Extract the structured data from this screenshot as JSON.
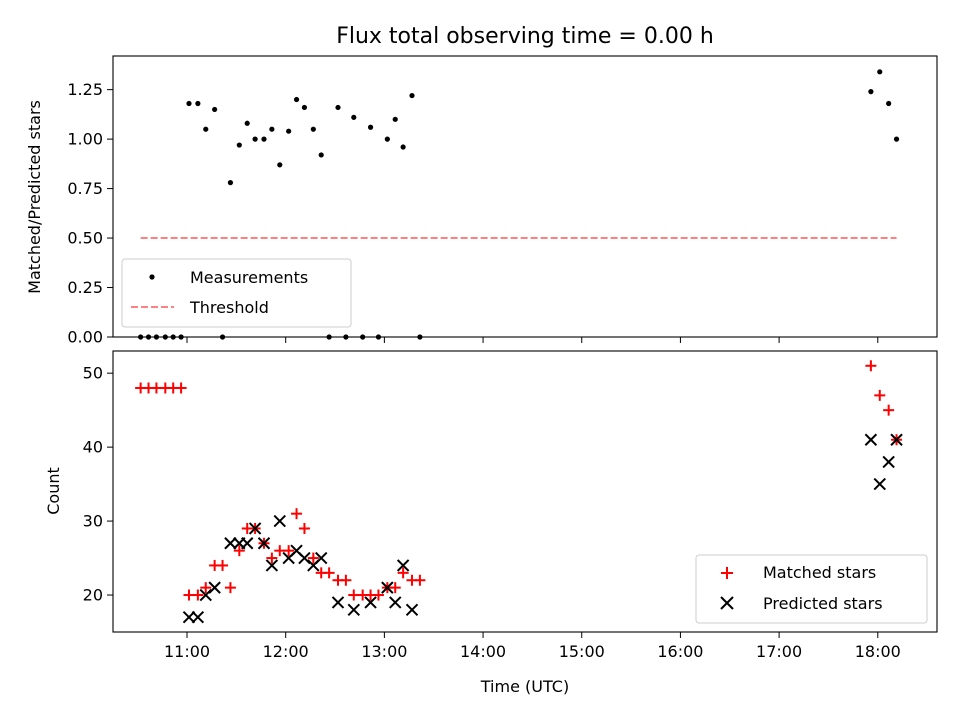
{
  "chart_data": [
    {
      "type": "scatter",
      "title": "Flux total observing time = 0.00 h",
      "xlabel": "",
      "ylabel": "Matched/Predicted stars",
      "xlim": [
        10.25,
        18.6
      ],
      "ylim": [
        0,
        1.42
      ],
      "yticks": [
        0.0,
        0.25,
        0.5,
        0.75,
        1.0,
        1.25
      ],
      "ytick_labels": [
        "0.00",
        "0.25",
        "0.50",
        "0.75",
        "1.00",
        "1.25"
      ],
      "legend_position": "lower-left",
      "series": [
        {
          "name": "Measurements",
          "kind": "dot",
          "color": "#000000",
          "points": [
            [
              10.53,
              0
            ],
            [
              10.61,
              0
            ],
            [
              10.69,
              0
            ],
            [
              10.78,
              0
            ],
            [
              10.86,
              0
            ],
            [
              10.94,
              0
            ],
            [
              11.02,
              1.18
            ],
            [
              11.11,
              1.18
            ],
            [
              11.19,
              1.05
            ],
            [
              11.28,
              1.15
            ],
            [
              11.36,
              0
            ],
            [
              11.44,
              0.78
            ],
            [
              11.53,
              0.97
            ],
            [
              11.61,
              1.08
            ],
            [
              11.69,
              1.0
            ],
            [
              11.78,
              1.0
            ],
            [
              11.86,
              1.05
            ],
            [
              11.94,
              0.87
            ],
            [
              12.03,
              1.04
            ],
            [
              12.11,
              1.2
            ],
            [
              12.19,
              1.16
            ],
            [
              12.28,
              1.05
            ],
            [
              12.36,
              0.92
            ],
            [
              12.44,
              0
            ],
            [
              12.53,
              1.16
            ],
            [
              12.61,
              0
            ],
            [
              12.69,
              1.11
            ],
            [
              12.78,
              0
            ],
            [
              12.86,
              1.06
            ],
            [
              12.94,
              0
            ],
            [
              13.03,
              1.0
            ],
            [
              13.11,
              1.1
            ],
            [
              13.19,
              0.96
            ],
            [
              13.28,
              1.22
            ],
            [
              13.36,
              0
            ],
            [
              17.93,
              1.24
            ],
            [
              18.02,
              1.34
            ],
            [
              18.11,
              1.18
            ],
            [
              18.19,
              1.0
            ]
          ]
        },
        {
          "name": "Threshold",
          "kind": "dashed-line",
          "color": "#ff8080",
          "points": [
            [
              10.53,
              0.5
            ],
            [
              18.19,
              0.5
            ]
          ]
        }
      ]
    },
    {
      "type": "scatter",
      "title": "",
      "xlabel": "Time (UTC)",
      "ylabel": "Count",
      "xlim": [
        10.25,
        18.6
      ],
      "ylim": [
        15,
        53
      ],
      "yticks": [
        20,
        30,
        40,
        50
      ],
      "ytick_labels": [
        "20",
        "30",
        "40",
        "50"
      ],
      "xticks": [
        11,
        12,
        13,
        14,
        15,
        16,
        17,
        18
      ],
      "xtick_labels": [
        "11:00",
        "12:00",
        "13:00",
        "14:00",
        "15:00",
        "16:00",
        "17:00",
        "18:00"
      ],
      "legend_position": "lower-right",
      "series": [
        {
          "name": "Matched stars",
          "kind": "plus",
          "color": "#ff0000",
          "points": [
            [
              10.53,
              48
            ],
            [
              10.61,
              48
            ],
            [
              10.69,
              48
            ],
            [
              10.78,
              48
            ],
            [
              10.86,
              48
            ],
            [
              10.94,
              48
            ],
            [
              11.02,
              20
            ],
            [
              11.11,
              20
            ],
            [
              11.19,
              21
            ],
            [
              11.28,
              24
            ],
            [
              11.36,
              24
            ],
            [
              11.44,
              21
            ],
            [
              11.53,
              26
            ],
            [
              11.61,
              29
            ],
            [
              11.69,
              29
            ],
            [
              11.78,
              27
            ],
            [
              11.86,
              25
            ],
            [
              11.94,
              26
            ],
            [
              12.03,
              26
            ],
            [
              12.11,
              31
            ],
            [
              12.19,
              29
            ],
            [
              12.28,
              25
            ],
            [
              12.36,
              23
            ],
            [
              12.44,
              23
            ],
            [
              12.53,
              22
            ],
            [
              12.61,
              22
            ],
            [
              12.69,
              20
            ],
            [
              12.78,
              20
            ],
            [
              12.86,
              20
            ],
            [
              12.94,
              20
            ],
            [
              13.03,
              21
            ],
            [
              13.11,
              21
            ],
            [
              13.19,
              23
            ],
            [
              13.28,
              22
            ],
            [
              13.36,
              22
            ],
            [
              17.93,
              51
            ],
            [
              18.02,
              47
            ],
            [
              18.11,
              45
            ],
            [
              18.19,
              41
            ]
          ]
        },
        {
          "name": "Predicted stars",
          "kind": "cross",
          "color": "#000000",
          "points": [
            [
              11.02,
              17
            ],
            [
              11.11,
              17
            ],
            [
              11.19,
              20
            ],
            [
              11.28,
              21
            ],
            [
              11.44,
              27
            ],
            [
              11.53,
              27
            ],
            [
              11.61,
              27
            ],
            [
              11.69,
              29
            ],
            [
              11.78,
              27
            ],
            [
              11.86,
              24
            ],
            [
              11.94,
              30
            ],
            [
              12.03,
              25
            ],
            [
              12.11,
              26
            ],
            [
              12.19,
              25
            ],
            [
              12.28,
              24
            ],
            [
              12.36,
              25
            ],
            [
              12.53,
              19
            ],
            [
              12.69,
              18
            ],
            [
              12.86,
              19
            ],
            [
              13.03,
              21
            ],
            [
              13.11,
              19
            ],
            [
              13.19,
              24
            ],
            [
              13.28,
              18
            ],
            [
              17.93,
              41
            ],
            [
              18.02,
              35
            ],
            [
              18.11,
              38
            ],
            [
              18.19,
              41
            ]
          ]
        }
      ]
    }
  ]
}
